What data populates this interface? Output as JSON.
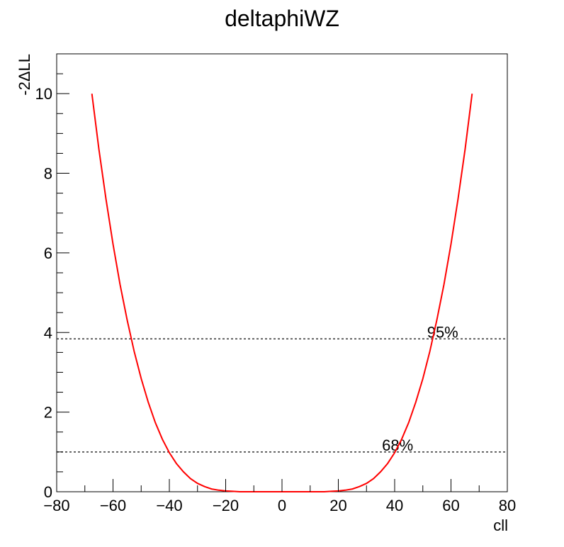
{
  "chart_data": {
    "type": "line",
    "title": "deltaphiWZ",
    "xlabel": "cll",
    "ylabel": "-2ΔLL",
    "xlim": [
      -80,
      80
    ],
    "ylim": [
      0,
      11
    ],
    "grid": false,
    "x_ticks": [
      "−80",
      "−60",
      "−40",
      "−20",
      "0",
      "20",
      "40",
      "60",
      "80"
    ],
    "y_ticks": [
      "0",
      "2",
      "4",
      "6",
      "8",
      "10"
    ],
    "series": [
      {
        "color": "#ff0000",
        "x": [
          -67.5,
          -65,
          -62.5,
          -60,
          -57.5,
          -55,
          -52.5,
          -50,
          -47.5,
          -45,
          -42.5,
          -40,
          -37.5,
          -35,
          -32.5,
          -30,
          -27.5,
          -25,
          -22.5,
          -20,
          -17.5,
          -15,
          -12.5,
          -10,
          -7.5,
          -5,
          -2.5,
          0,
          2.5,
          5,
          7.5,
          10,
          12.5,
          15,
          17.5,
          20,
          22.5,
          25,
          27.5,
          30,
          32.5,
          35,
          37.5,
          40,
          42.5,
          45,
          47.5,
          50,
          52.5,
          55,
          57.5,
          60,
          62.5,
          65,
          67.5
        ],
        "y": [
          10.0,
          8.6,
          7.35,
          6.22,
          5.21,
          4.32,
          3.53,
          2.84,
          2.25,
          1.74,
          1.32,
          0.98,
          0.71,
          0.5,
          0.33,
          0.21,
          0.13,
          0.07,
          0.04,
          0.02,
          0.01,
          0.0,
          0.0,
          0.0,
          0.0,
          0.0,
          0.0,
          0.0,
          0.0,
          0.0,
          0.0,
          0.0,
          0.0,
          0.0,
          0.01,
          0.02,
          0.04,
          0.07,
          0.13,
          0.21,
          0.33,
          0.5,
          0.71,
          0.98,
          1.32,
          1.74,
          2.25,
          2.84,
          3.53,
          4.32,
          5.21,
          6.22,
          7.35,
          8.6,
          10.0
        ]
      }
    ],
    "reference_lines": [
      {
        "y": 1.0,
        "label": "68%",
        "label_x": 35.5,
        "color": "#333333"
      },
      {
        "y": 3.84,
        "label": "95%",
        "label_x": 51.5,
        "color": "#333333"
      }
    ]
  }
}
